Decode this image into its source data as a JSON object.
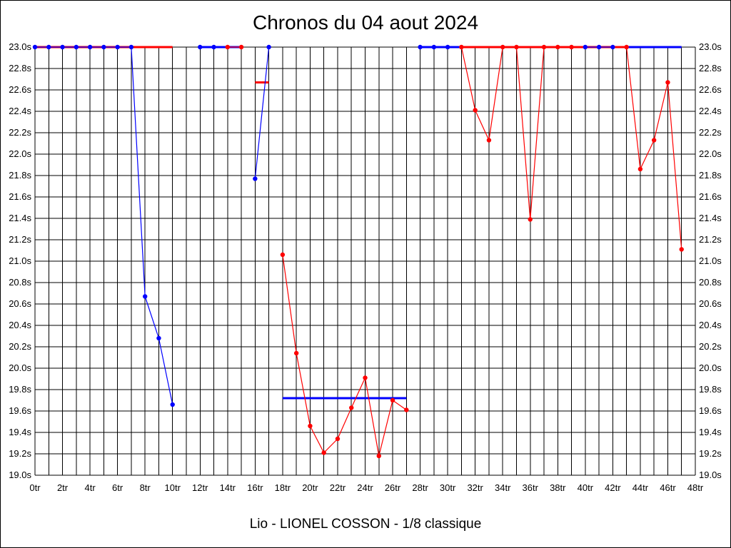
{
  "chart_data": {
    "type": "line",
    "title": "Chronos du 04 aout 2024",
    "footer": "Lio - LIONEL COSSON - 1/8 classique",
    "x_unit": "tr",
    "y_unit": "s",
    "xlim": [
      0,
      48
    ],
    "ylim": [
      19.0,
      23.0
    ],
    "x_tick_step": 2,
    "y_tick_step": 0.2,
    "grid": true,
    "colors": {
      "blue": "#0000ff",
      "red": "#ff0000",
      "grid": "#000000"
    },
    "series": [
      {
        "color": "blue",
        "markers": true,
        "x": [
          0,
          1,
          2,
          3,
          4,
          5,
          6,
          7,
          8,
          9,
          10
        ],
        "y": [
          23.0,
          23.0,
          23.0,
          23.0,
          23.0,
          23.0,
          23.0,
          23.0,
          20.67,
          20.28,
          19.66
        ]
      },
      {
        "color": "blue",
        "markers": true,
        "x": [
          12,
          13
        ],
        "y": [
          23.0,
          23.0
        ]
      },
      {
        "color": "blue",
        "markers": true,
        "x": [
          16,
          17
        ],
        "y": [
          21.77,
          23.0
        ]
      },
      {
        "color": "blue",
        "markers": true,
        "x": [
          28,
          29,
          30
        ],
        "y": [
          23.0,
          23.0,
          23.0
        ]
      },
      {
        "color": "blue",
        "markers": true,
        "x": [
          40,
          41,
          42
        ],
        "y": [
          23.0,
          23.0,
          23.0
        ]
      },
      {
        "color": "red",
        "markers": true,
        "x": [
          14,
          15
        ],
        "y": [
          23.0,
          23.0
        ]
      },
      {
        "color": "red",
        "markers": true,
        "x": [
          18,
          19,
          20,
          21,
          22,
          23,
          24,
          25,
          26,
          27
        ],
        "y": [
          21.06,
          20.14,
          19.46,
          19.21,
          19.34,
          19.63,
          19.91,
          19.18,
          19.7,
          19.61
        ]
      },
      {
        "color": "red",
        "markers": true,
        "x": [
          31,
          32,
          33,
          34,
          35,
          36,
          37,
          38,
          39
        ],
        "y": [
          23.0,
          22.41,
          22.13,
          23.0,
          23.0,
          21.39,
          23.0,
          23.0,
          23.0
        ]
      },
      {
        "color": "red",
        "markers": true,
        "x": [
          43,
          44,
          45,
          46,
          47
        ],
        "y": [
          23.0,
          21.86,
          22.13,
          22.67,
          21.11
        ]
      }
    ],
    "averages": [
      {
        "color": "red",
        "x": [
          0,
          10
        ],
        "y": 23.0
      },
      {
        "color": "blue",
        "x": [
          12,
          15
        ],
        "y": 23.0
      },
      {
        "color": "red",
        "x": [
          16,
          17
        ],
        "y": 22.67
      },
      {
        "color": "blue",
        "x": [
          18,
          27
        ],
        "y": 19.72
      },
      {
        "color": "blue",
        "x": [
          28,
          47
        ],
        "y": 23.0
      },
      {
        "color": "red",
        "x": [
          31,
          43
        ],
        "y": 23.0
      }
    ]
  }
}
